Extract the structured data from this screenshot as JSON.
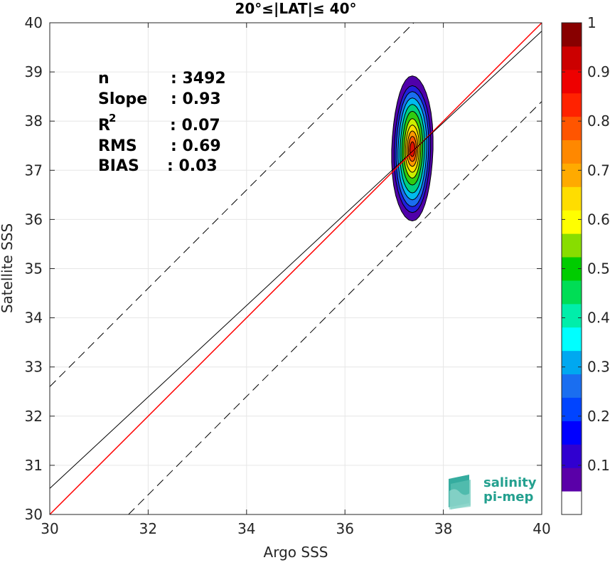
{
  "chart_data": {
    "type": "contour-scatter",
    "title": "20°≤|LAT|≤ 40°",
    "xlabel": "Argo SSS",
    "ylabel": "Satellite SSS",
    "xlim": [
      30,
      40
    ],
    "ylim": [
      30,
      40
    ],
    "xticks": [
      "30",
      "32",
      "34",
      "36",
      "38",
      "40"
    ],
    "yticks": [
      "30",
      "31",
      "32",
      "33",
      "34",
      "35",
      "36",
      "37",
      "38",
      "39",
      "40"
    ],
    "grid": true,
    "stats": [
      {
        "label": "n",
        "value": ": 3492"
      },
      {
        "label": "Slope",
        "value": ": 0.93"
      },
      {
        "label": "R",
        "sup": "2",
        "value": ": 0.07"
      },
      {
        "label": "RMS",
        "value": ": 0.69"
      },
      {
        "label": "BIAS",
        "value": ": 0.03"
      }
    ],
    "lines": [
      {
        "kind": "identity",
        "color": "#ff0000",
        "slope": 1.0,
        "intercept": 0.0
      },
      {
        "kind": "regression",
        "color": "#000000",
        "slope": 0.93,
        "intercept": 2.63
      },
      {
        "kind": "offset-upper",
        "color": "#000000",
        "dashed": true,
        "slope": 1.0,
        "intercept": 2.6
      },
      {
        "kind": "offset-lower",
        "color": "#000000",
        "dashed": true,
        "slope": 1.0,
        "intercept": -1.6
      }
    ],
    "density_contours": {
      "center": [
        37.37,
        37.42
      ],
      "levels": [
        {
          "level": 0.05,
          "rx": 0.42,
          "ry_up": 1.5,
          "ry_down": 1.45,
          "color": "#5000aa"
        },
        {
          "level": 0.15,
          "rx": 0.37,
          "ry_up": 1.3,
          "ry_down": 1.28,
          "color": "#2020dd"
        },
        {
          "level": 0.25,
          "rx": 0.33,
          "ry_up": 1.18,
          "ry_down": 1.16,
          "color": "#1a6ef0"
        },
        {
          "level": 0.35,
          "rx": 0.29,
          "ry_up": 1.05,
          "ry_down": 1.02,
          "color": "#00bbee"
        },
        {
          "level": 0.45,
          "rx": 0.25,
          "ry_up": 0.92,
          "ry_down": 0.88,
          "color": "#00d080"
        },
        {
          "level": 0.55,
          "rx": 0.21,
          "ry_up": 0.78,
          "ry_down": 0.72,
          "color": "#30cc10"
        },
        {
          "level": 0.62,
          "rx": 0.17,
          "ry_up": 0.63,
          "ry_down": 0.58,
          "color": "#ccee00"
        },
        {
          "level": 0.68,
          "rx": 0.14,
          "ry_up": 0.5,
          "ry_down": 0.46,
          "color": "#ffdd00"
        },
        {
          "level": 0.75,
          "rx": 0.11,
          "ry_up": 0.38,
          "ry_down": 0.34,
          "color": "#ff9900"
        },
        {
          "level": 0.82,
          "rx": 0.08,
          "ry_up": 0.27,
          "ry_down": 0.24,
          "color": "#ff5500"
        },
        {
          "level": 0.9,
          "rx": 0.05,
          "ry_up": 0.16,
          "ry_down": 0.14,
          "color": "#dd1100"
        }
      ]
    },
    "colorbar": {
      "ticks": [
        "0.1",
        "0.2",
        "0.3",
        "0.4",
        "0.5",
        "0.6",
        "0.7",
        "0.8",
        "0.9",
        "1"
      ],
      "range": [
        0,
        1
      ],
      "segments": [
        "#ffffff",
        "#5a00a8",
        "#3000d0",
        "#0000ff",
        "#0044ff",
        "#1a6ef0",
        "#00a8f0",
        "#00ffff",
        "#00eeaa",
        "#00dd55",
        "#00cc00",
        "#88dd00",
        "#ffff00",
        "#ffdd00",
        "#ffaa00",
        "#ff8800",
        "#ff5500",
        "#ff2200",
        "#ee0000",
        "#cc0000",
        "#880000"
      ]
    }
  },
  "logo": {
    "line1": "salinity",
    "line2": "pi-mep"
  }
}
